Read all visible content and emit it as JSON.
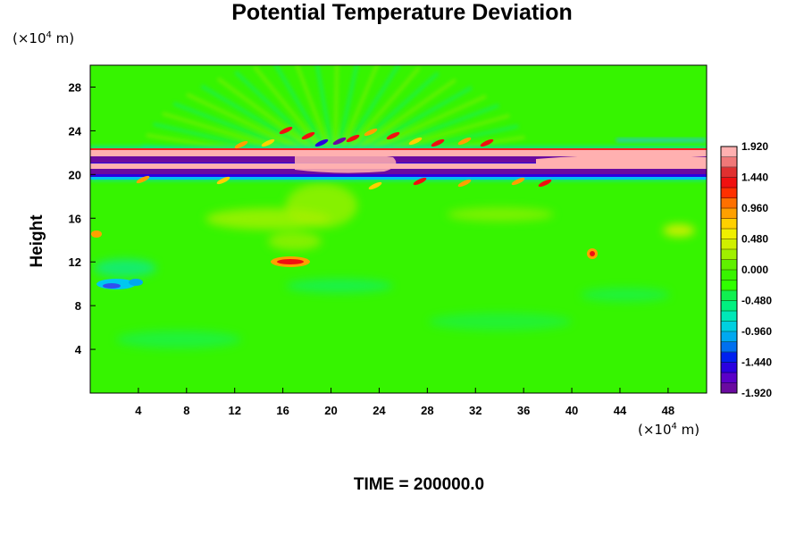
{
  "chart_data": {
    "type": "heatmap",
    "title": "Potential Temperature Deviation",
    "ylabel": "Height",
    "x_unit": {
      "prefix": "(×10",
      "exponent": "4",
      "suffix": " m)"
    },
    "y_unit": {
      "prefix": "(×10",
      "exponent": "4",
      "suffix": " m)"
    },
    "xlim": [
      0,
      51.2
    ],
    "ylim": [
      0,
      30
    ],
    "x_ticks": [
      "4",
      "8",
      "12",
      "16",
      "20",
      "24",
      "28",
      "32",
      "36",
      "40",
      "44",
      "48"
    ],
    "y_ticks": [
      "4",
      "8",
      "12",
      "16",
      "20",
      "24",
      "28"
    ],
    "colorbar": {
      "range": [
        -1.92,
        1.92
      ],
      "labels": [
        "1.920",
        "1.440",
        "0.960",
        "0.480",
        "0.000",
        "-0.480",
        "-0.960",
        "-1.440",
        "-1.920"
      ],
      "colors": [
        "#6a0aa0",
        "#5a00c8",
        "#2a00e0",
        "#0020f0",
        "#0070f0",
        "#00a8f0",
        "#00d0e0",
        "#00e8b8",
        "#00f080",
        "#10f050",
        "#30ff00",
        "#38f400",
        "#60f000",
        "#a0f000",
        "#d0f000",
        "#f0f000",
        "#ffd000",
        "#ffa000",
        "#ff7000",
        "#ff3000",
        "#f01010",
        "#e03030",
        "#f07878",
        "#ffb0b0"
      ]
    },
    "background_value": 0.0
  },
  "footer": {
    "time_label": "TIME = 200000.0"
  }
}
